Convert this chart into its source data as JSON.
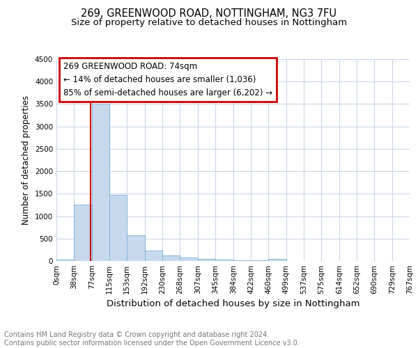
{
  "title": "269, GREENWOOD ROAD, NOTTINGHAM, NG3 7FU",
  "subtitle": "Size of property relative to detached houses in Nottingham",
  "xlabel": "Distribution of detached houses by size in Nottingham",
  "ylabel": "Number of detached properties",
  "bin_edges": [
    0,
    38,
    77,
    115,
    153,
    192,
    230,
    268,
    307,
    345,
    384,
    422,
    460,
    499,
    537,
    575,
    614,
    652,
    690,
    729,
    767
  ],
  "bar_heights": [
    30,
    1260,
    3500,
    1480,
    580,
    240,
    130,
    75,
    45,
    25,
    15,
    10,
    50,
    5,
    0,
    0,
    0,
    0,
    0,
    0
  ],
  "bar_color": "#c8d9ee",
  "bar_edge_color": "#7aadd4",
  "property_size": 74,
  "red_line_color": "#cc0000",
  "annotation_line1": "269 GREENWOOD ROAD: 74sqm",
  "annotation_line2": "← 14% of detached houses are smaller (1,036)",
  "annotation_line3": "85% of semi-detached houses are larger (6,202) →",
  "annotation_box_color": "#cc0000",
  "ylim": [
    0,
    4500
  ],
  "yticks": [
    0,
    500,
    1000,
    1500,
    2000,
    2500,
    3000,
    3500,
    4000,
    4500
  ],
  "tick_labels": [
    "0sqm",
    "38sqm",
    "77sqm",
    "115sqm",
    "153sqm",
    "192sqm",
    "230sqm",
    "268sqm",
    "307sqm",
    "345sqm",
    "384sqm",
    "422sqm",
    "460sqm",
    "499sqm",
    "537sqm",
    "575sqm",
    "614sqm",
    "652sqm",
    "690sqm",
    "729sqm",
    "767sqm"
  ],
  "footer_text": "Contains HM Land Registry data © Crown copyright and database right 2024.\nContains public sector information licensed under the Open Government Licence v3.0.",
  "background_color": "#ffffff",
  "grid_color": "#ccd6e8",
  "title_fontsize": 10.5,
  "subtitle_fontsize": 9.5,
  "xlabel_fontsize": 9.5,
  "ylabel_fontsize": 8.5,
  "tick_fontsize": 7.5,
  "annotation_fontsize": 8.5,
  "footer_fontsize": 7.0
}
